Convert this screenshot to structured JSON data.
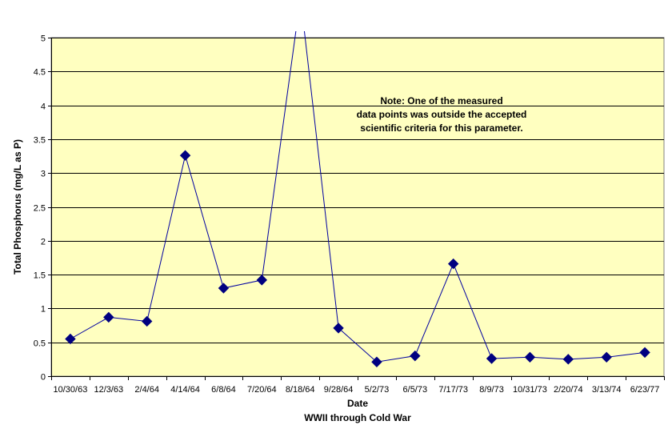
{
  "chart_data": {
    "type": "line",
    "title": "",
    "xlabel": "Date",
    "xlabel_sub": "WWII through Cold War",
    "ylabel": "Total Phosphorus (mg/L as P)",
    "ylim": [
      0,
      5
    ],
    "yticks": [
      "0",
      "0.5",
      "1",
      "1.5",
      "2",
      "2.5",
      "3",
      "3.5",
      "4",
      "4.5",
      "5"
    ],
    "categories": [
      "10/30/63",
      "12/3/63",
      "2/4/64",
      "4/14/64",
      "6/8/64",
      "7/20/64",
      "8/18/64",
      "9/28/64",
      "5/2/73",
      "6/5/73",
      "7/17/73",
      "8/9/73",
      "10/31/73",
      "2/20/74",
      "3/13/74",
      "6/23/77"
    ],
    "series": [
      {
        "values": [
          0.55,
          0.87,
          0.81,
          3.26,
          1.3,
          1.42,
          null,
          0.71,
          0.21,
          0.3,
          1.66,
          0.26,
          0.28,
          0.25,
          0.28,
          0.35
        ],
        "off_scale_index": 6
      }
    ],
    "annotation": [
      "Note:  One of the measured",
      "data points was outside the accepted",
      "scientific criteria for this parameter."
    ],
    "grid": true,
    "legend": "none",
    "colors": {
      "plot_bg": "#ffffc0",
      "series": "#0000a0",
      "marker": "#000080",
      "grid": "#000000"
    }
  }
}
